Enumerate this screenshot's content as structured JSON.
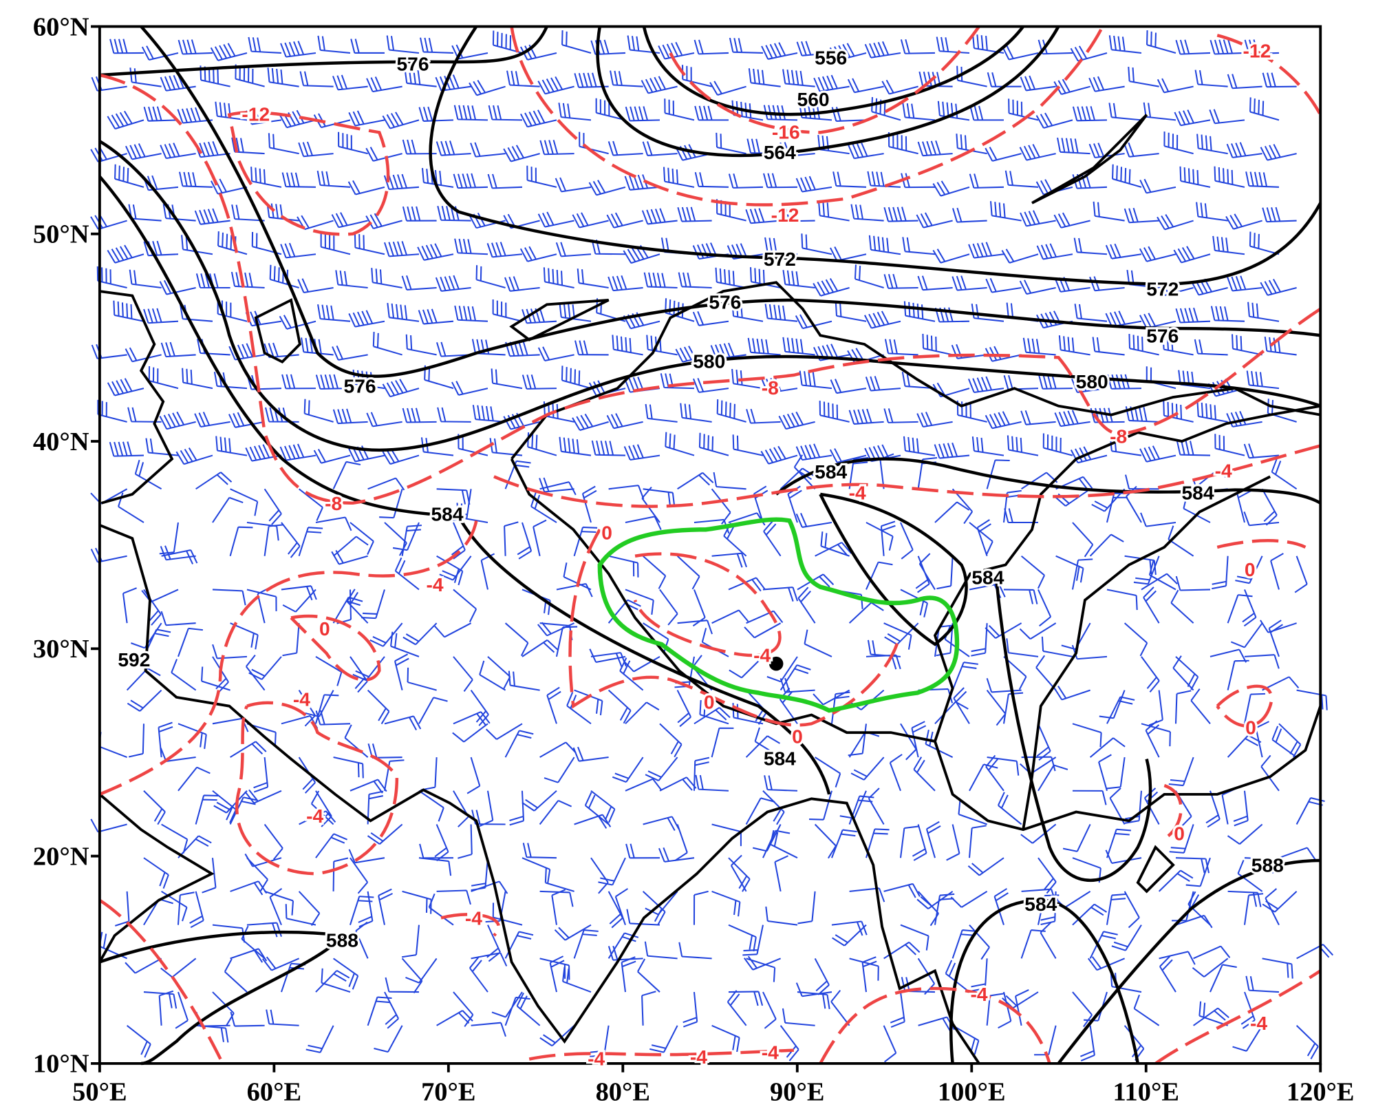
{
  "x_ticks": [
    "50°E",
    "60°E",
    "70°E",
    "80°E",
    "90°E",
    "100°E",
    "110°E",
    "120°E"
  ],
  "y_ticks": [
    "60°N",
    "50°N",
    "40°N",
    "30°N",
    "20°N",
    "10°N"
  ],
  "height_labels": [
    "576",
    "556",
    "560",
    "564",
    "572",
    "576",
    "572",
    "576",
    "580",
    "580",
    "576",
    "584",
    "584",
    "584",
    "584",
    "592",
    "584",
    "584",
    "588",
    "588"
  ],
  "temperature_labels": [
    "-12",
    "-12",
    "-16",
    "-12",
    "-8",
    "-8",
    "-8",
    "-4",
    "-4",
    "-4",
    "0",
    "0",
    "0",
    "-4",
    "-4",
    "0",
    "0",
    "0",
    "-4",
    "0",
    "-4",
    "-4",
    "-4",
    "-4",
    "-4",
    "-4"
  ]
}
